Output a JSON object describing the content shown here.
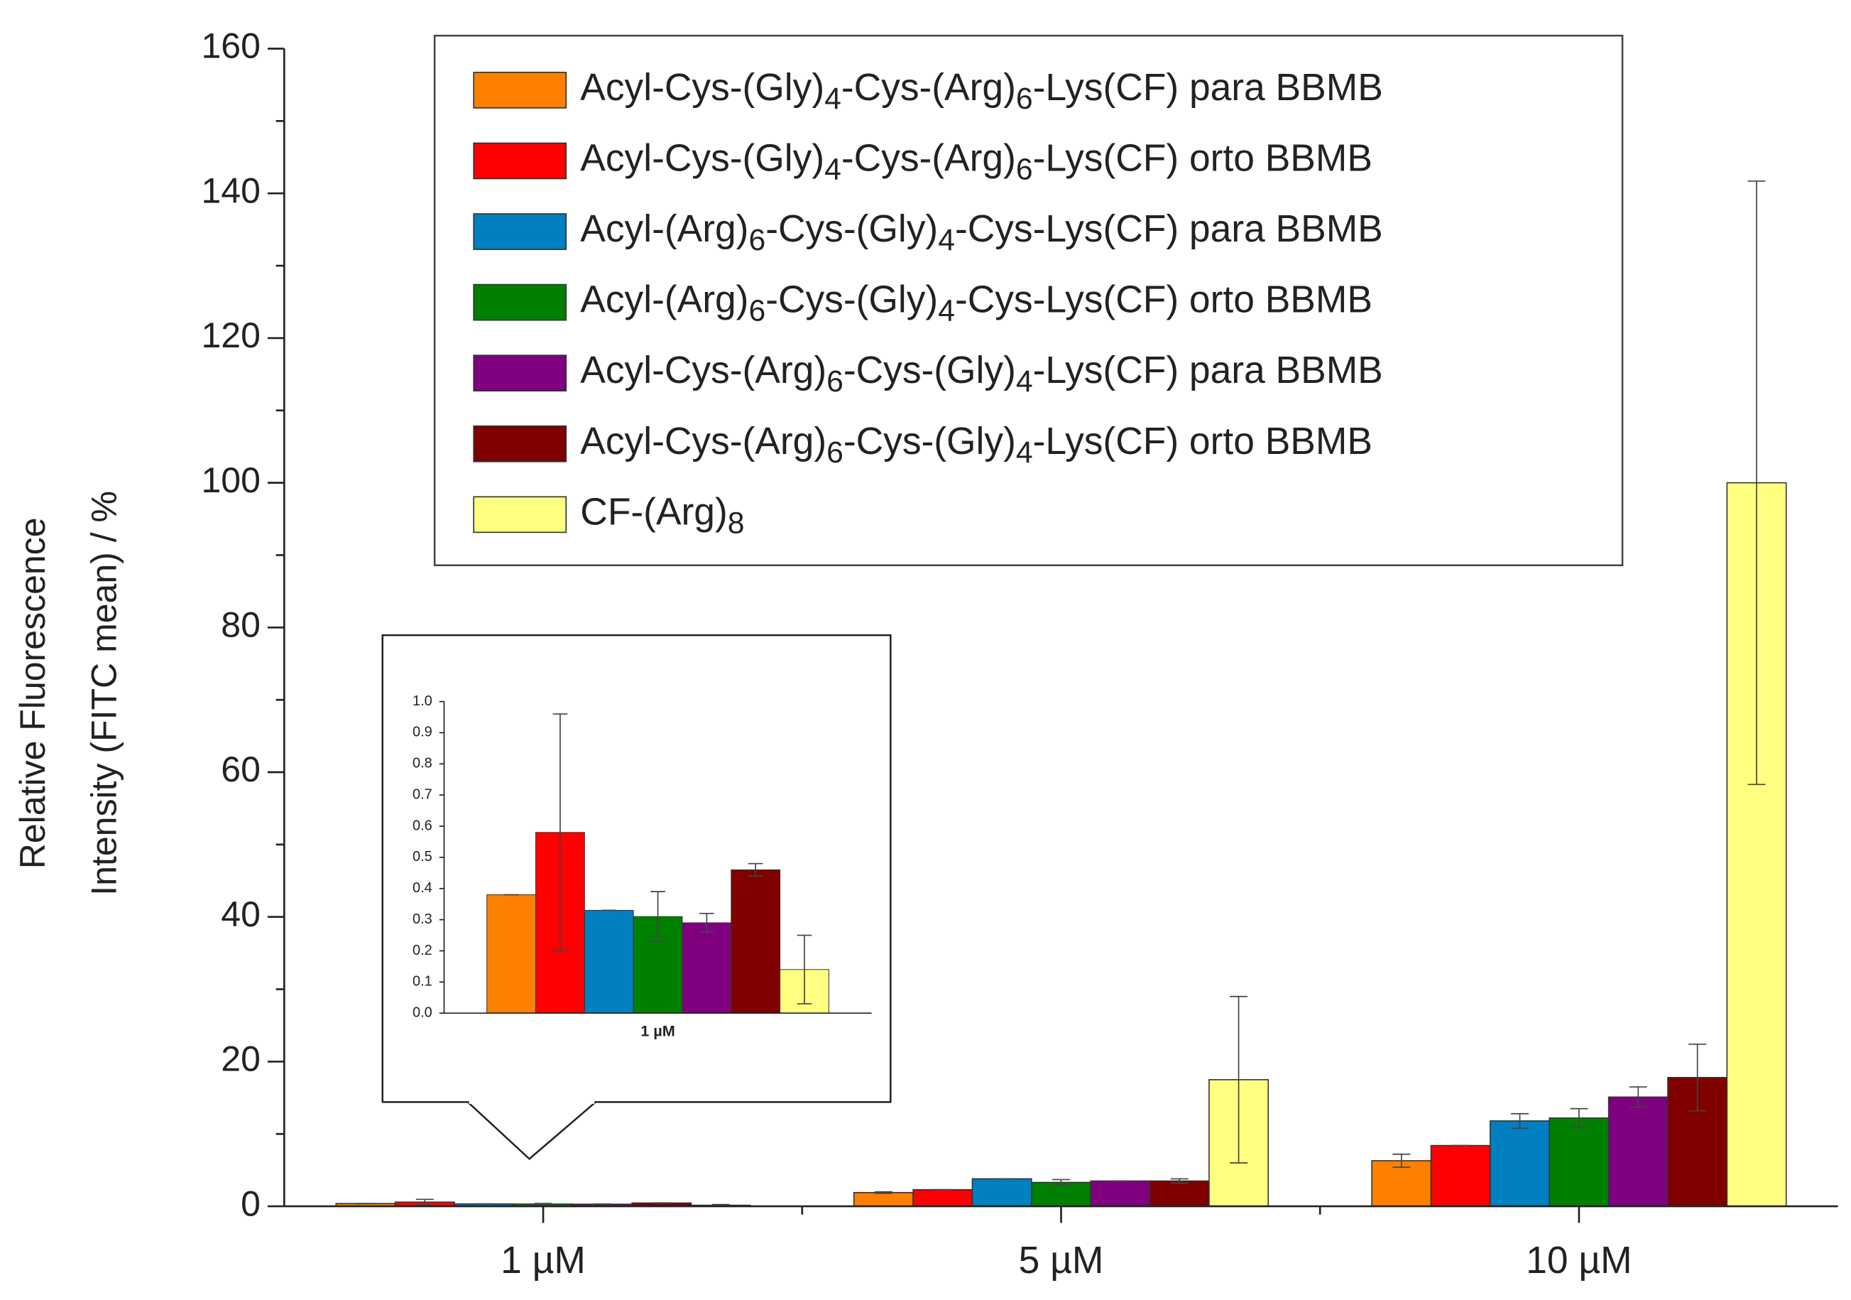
{
  "chart_data": [
    {
      "type": "bar",
      "ylabel": [
        "Relative Fluorescence",
        "Intensity (FITC mean) / %"
      ],
      "categories": [
        "1 µM",
        "5 µM",
        "10 µM"
      ],
      "ylim": [
        0,
        160
      ],
      "yticks": [
        0,
        20,
        40,
        60,
        80,
        100,
        120,
        140,
        160
      ],
      "legend": "upper center",
      "series": [
        {
          "name": "Acyl-Cys-(Gly)4-Cys-(Arg)6-Lys(CF) para BBMB",
          "color": "#ff8000",
          "values": [
            0.38,
            1.9,
            6.3
          ],
          "errors": [
            0.0,
            0.1,
            0.9
          ]
        },
        {
          "name": "Acyl-Cys-(Gly)4-Cys-(Arg)6-Lys(CF) orto BBMB",
          "color": "#ff0000",
          "values": [
            0.58,
            2.3,
            8.4
          ],
          "errors": [
            0.38,
            0.0,
            0.0
          ]
        },
        {
          "name": "Acyl-(Arg)6-Cys-(Gly)4-Cys-Lys(CF) para BBMB",
          "color": "#0080c0",
          "values": [
            0.33,
            3.8,
            11.8
          ],
          "errors": [
            0.0,
            0.0,
            1.0
          ]
        },
        {
          "name": "Acyl-(Arg)6-Cys-(Gly)4-Cys-Lys(CF) orto BBMB",
          "color": "#008000",
          "values": [
            0.31,
            3.3,
            12.2
          ],
          "errors": [
            0.08,
            0.4,
            1.3
          ]
        },
        {
          "name": "Acyl-Cys-(Arg)6-Cys-(Gly)4-Lys(CF) para BBMB",
          "color": "#800080",
          "values": [
            0.29,
            3.5,
            15.1
          ],
          "errors": [
            0.03,
            0.0,
            1.4
          ]
        },
        {
          "name": "Acyl-Cys-(Arg)6-Cys-(Gly)4-Lys(CF) orto BBMB",
          "color": "#800000",
          "values": [
            0.46,
            3.5,
            17.8
          ],
          "errors": [
            0.02,
            0.3,
            4.6
          ]
        },
        {
          "name": "CF-(Arg)8",
          "color": "#ffff80",
          "values": [
            0.14,
            17.5,
            100
          ],
          "errors": [
            0.11,
            11.5,
            41.7
          ]
        }
      ]
    },
    {
      "type": "bar",
      "categories": [
        "1 µM"
      ],
      "ylim": [
        0,
        1.0
      ],
      "yticks": [
        {
          "value": 0,
          "label": "0.0"
        },
        0.1,
        0.2,
        0.3,
        0.4,
        0.5,
        0.6,
        0.7,
        0.8,
        0.9,
        {
          "value": 1.0,
          "label": "1.0"
        }
      ],
      "series": [
        {
          "color": "#ff8000",
          "values": [
            0.38
          ],
          "errors": [
            0.0
          ]
        },
        {
          "color": "#ff0000",
          "values": [
            0.58
          ],
          "errors": [
            0.38
          ]
        },
        {
          "color": "#0080c0",
          "values": [
            0.33
          ],
          "errors": [
            0.0
          ]
        },
        {
          "color": "#008000",
          "values": [
            0.31
          ],
          "errors": [
            0.08
          ]
        },
        {
          "color": "#800080",
          "values": [
            0.29
          ],
          "errors": [
            0.03
          ]
        },
        {
          "color": "#800000",
          "values": [
            0.46
          ],
          "errors": [
            0.02
          ]
        },
        {
          "color": "#ffff80",
          "values": [
            0.14
          ],
          "errors": [
            0.11
          ]
        }
      ]
    }
  ]
}
